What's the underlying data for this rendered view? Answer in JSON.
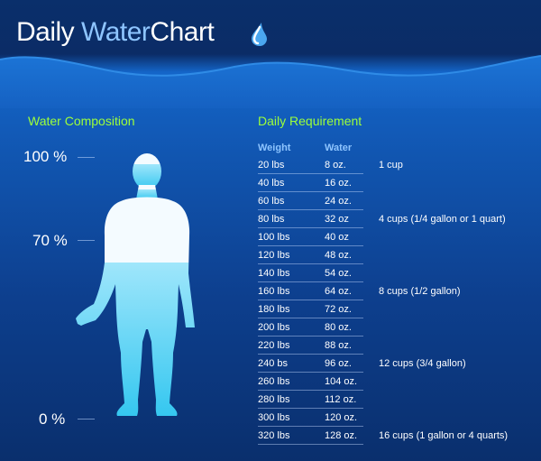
{
  "title": {
    "part1": "Daily ",
    "part2": "Water",
    "part3": "Chart"
  },
  "icons": {
    "title_drop": "water-drop-icon",
    "figure": "human-figure-icon"
  },
  "colors": {
    "background_top": "#0b2c66",
    "water_blue": "#1465c8",
    "section_title": "#9dff3a",
    "column_header": "#8ec5ff",
    "figure_upper": "#f4fbff",
    "figure_water": "#35c7f0"
  },
  "composition": {
    "heading": "Water Composition",
    "markers": [
      {
        "label": "100 %",
        "percent": 100
      },
      {
        "label": "70 %",
        "percent": 70
      },
      {
        "label": "0 %",
        "percent": 0
      }
    ],
    "water_level_percent": 70
  },
  "requirement": {
    "heading": "Daily Requirement",
    "columns": [
      "Weight",
      "Water"
    ],
    "rows": [
      {
        "weight": "20 lbs",
        "water": "8 oz.",
        "note": "1 cup"
      },
      {
        "weight": "40 lbs",
        "water": "16 oz.",
        "note": ""
      },
      {
        "weight": "60 lbs",
        "water": "24 oz.",
        "note": ""
      },
      {
        "weight": "80 lbs",
        "water": "32 oz",
        "note": "4 cups (1/4 gallon or 1 quart)"
      },
      {
        "weight": "100 lbs",
        "water": "40 oz",
        "note": ""
      },
      {
        "weight": "120 lbs",
        "water": "48 oz.",
        "note": ""
      },
      {
        "weight": "140 lbs",
        "water": "54 oz.",
        "note": ""
      },
      {
        "weight": "160 lbs",
        "water": "64 oz.",
        "note": "8 cups (1/2 gallon)"
      },
      {
        "weight": "180 lbs",
        "water": "72 oz.",
        "note": ""
      },
      {
        "weight": "200 lbs",
        "water": "80 oz.",
        "note": ""
      },
      {
        "weight": "220 lbs",
        "water": "88 oz.",
        "note": ""
      },
      {
        "weight": "240 bs",
        "water": "96 oz.",
        "note": "12 cups (3/4 gallon)"
      },
      {
        "weight": "260 lbs",
        "water": "104 oz.",
        "note": ""
      },
      {
        "weight": "280 lbs",
        "water": "112 oz.",
        "note": ""
      },
      {
        "weight": "300 lbs",
        "water": "120 oz.",
        "note": ""
      },
      {
        "weight": "320 lbs",
        "water": "128 oz.",
        "note": "16 cups (1 gallon or 4 quarts)"
      }
    ]
  }
}
